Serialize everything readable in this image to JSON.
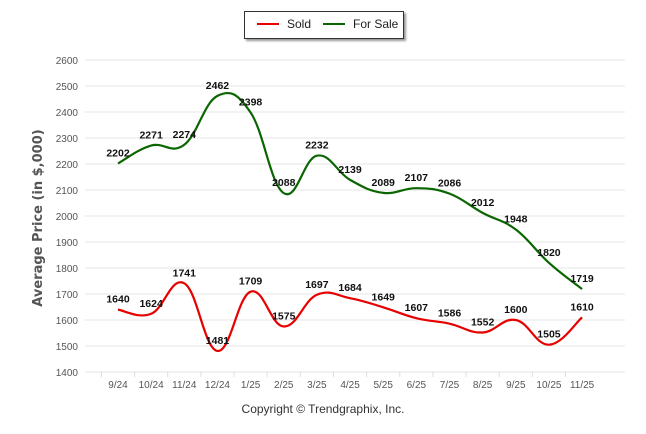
{
  "chart_data": {
    "type": "line",
    "title": "",
    "xlabel": "",
    "ylabel": "Average Price (in $,000)",
    "ylim": [
      1400,
      2600
    ],
    "yticks": [
      1400,
      1500,
      1600,
      1700,
      1800,
      1900,
      2000,
      2100,
      2200,
      2300,
      2400,
      2500,
      2600
    ],
    "grid": true,
    "legend_position": "top-center",
    "categories": [
      "9/24",
      "10/24",
      "11/24",
      "12/24",
      "1/25",
      "2/25",
      "3/25",
      "4/25",
      "5/25",
      "6/25",
      "7/25",
      "8/25",
      "9/25",
      "10/25",
      "11/25"
    ],
    "series": [
      {
        "name": "Sold",
        "color": "#e60000",
        "values": [
          1640,
          1624,
          1741,
          1481,
          1709,
          1575,
          1697,
          1684,
          1649,
          1607,
          1586,
          1552,
          1600,
          1505,
          1610
        ]
      },
      {
        "name": "For Sale",
        "color": "#0a6600",
        "values": [
          2202,
          2271,
          2274,
          2462,
          2398,
          2088,
          2232,
          2139,
          2089,
          2107,
          2086,
          2012,
          1948,
          1820,
          1719
        ]
      }
    ]
  },
  "copyright": "Copyright © Trendgraphix, Inc."
}
